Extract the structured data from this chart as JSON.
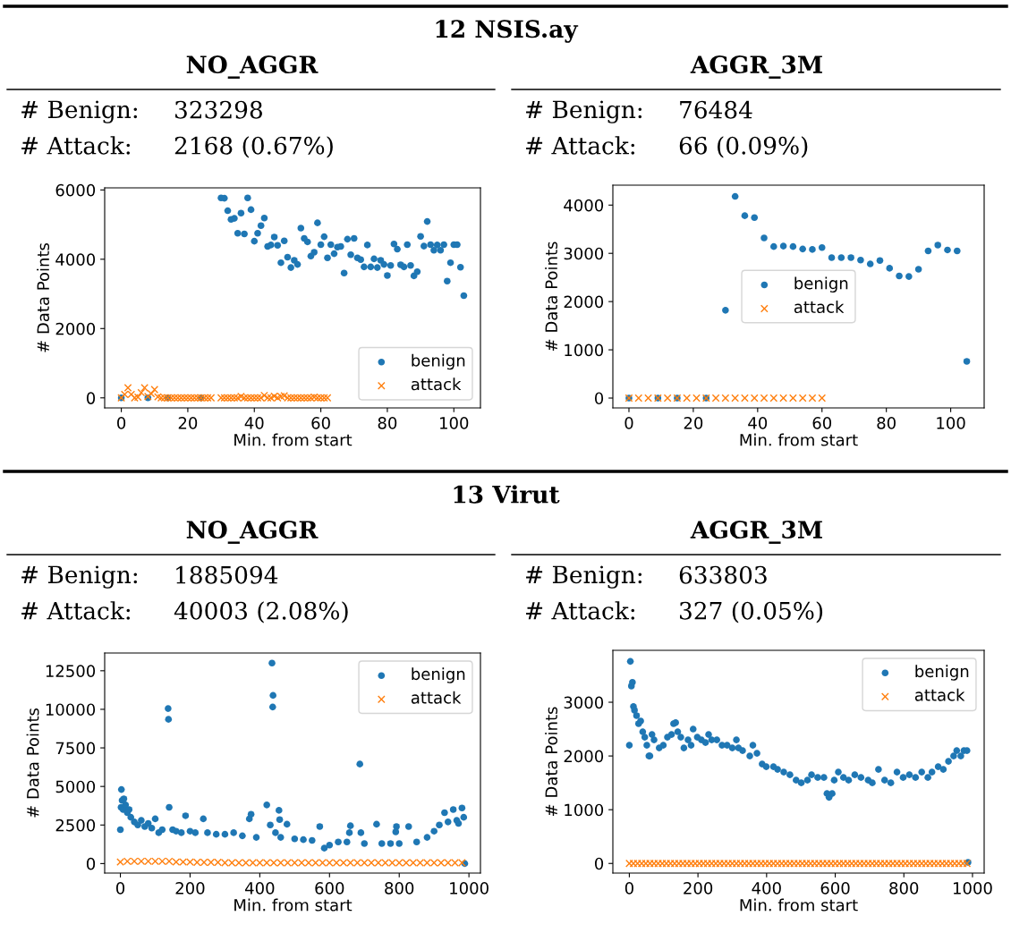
{
  "chart_data": [
    {
      "type": "other",
      "title": "12 NSIS.ay"
    },
    {
      "type": "scatter",
      "title": "NO_AGGR",
      "annotations": [
        "# Benign:",
        "323298",
        "# Attack:",
        "2168 (0.67%)"
      ],
      "xlabel": "Min. from start",
      "ylabel": "# Data Points",
      "xlim": [
        -5,
        108
      ],
      "ylim": [
        -290,
        6060
      ],
      "xticks": [
        0,
        20,
        40,
        60,
        80,
        100
      ],
      "yticks": [
        0,
        2000,
        4000,
        6000
      ],
      "legend": "bottom right",
      "grid": false,
      "series": [
        {
          "name": "benign",
          "color": "#1f77b4",
          "marker": "circle",
          "x": [
            0,
            8,
            14,
            24,
            30,
            31,
            32,
            33,
            34,
            35,
            36,
            37,
            38,
            39,
            40,
            41,
            42,
            43,
            44,
            45,
            46,
            47,
            48,
            49,
            50,
            51,
            52,
            53,
            54,
            55,
            56,
            57,
            58,
            59,
            60,
            61,
            62,
            63,
            64,
            65,
            66,
            67,
            68,
            69,
            70,
            71,
            72,
            73,
            74,
            75,
            76,
            77,
            78,
            79,
            80,
            81,
            82,
            83,
            84,
            85,
            86,
            87,
            88,
            89,
            90,
            91,
            92,
            93,
            94,
            95,
            96,
            97,
            98,
            99,
            100,
            101,
            102,
            103
          ],
          "values": [
            0,
            0,
            0,
            0,
            5770,
            5760,
            5400,
            5150,
            5180,
            4750,
            5330,
            4730,
            5770,
            5430,
            4520,
            4750,
            4970,
            5190,
            4370,
            4410,
            4640,
            4400,
            3900,
            4530,
            4060,
            3760,
            3970,
            3850,
            4900,
            4600,
            4500,
            4090,
            4200,
            5050,
            4420,
            4650,
            4040,
            4420,
            4160,
            4350,
            4370,
            3600,
            4580,
            4130,
            4600,
            4040,
            3990,
            3780,
            4410,
            3780,
            4010,
            3760,
            3970,
            3850,
            3530,
            3820,
            4440,
            4290,
            3840,
            3780,
            4420,
            3820,
            3520,
            3640,
            4660,
            4380,
            5090,
            4420,
            4260,
            4410,
            4260,
            4420,
            3370,
            3900,
            4420,
            4420,
            3770,
            2950
          ]
        },
        {
          "name": "attack",
          "color": "#ff7f0e",
          "marker": "cross",
          "x": [
            0,
            1,
            2,
            3,
            4,
            5,
            6,
            7,
            8,
            9,
            10,
            11,
            12,
            13,
            14,
            15,
            16,
            17,
            18,
            19,
            20,
            21,
            22,
            23,
            24,
            25,
            26,
            27,
            30,
            31,
            32,
            33,
            34,
            35,
            36,
            37,
            38,
            39,
            40,
            41,
            42,
            43,
            44,
            45,
            46,
            47,
            48,
            49,
            50,
            51,
            52,
            53,
            54,
            55,
            56,
            57,
            58,
            59,
            60,
            61,
            62
          ],
          "values": [
            0,
            100,
            290,
            100,
            0,
            20,
            150,
            290,
            40,
            120,
            240,
            30,
            0,
            0,
            0,
            0,
            0,
            0,
            0,
            0,
            0,
            0,
            0,
            0,
            0,
            0,
            0,
            0,
            0,
            0,
            0,
            0,
            0,
            0,
            40,
            0,
            0,
            0,
            0,
            0,
            0,
            70,
            0,
            0,
            50,
            0,
            40,
            60,
            0,
            0,
            0,
            0,
            0,
            0,
            0,
            0,
            20,
            0,
            0,
            0,
            0
          ]
        }
      ]
    },
    {
      "type": "scatter",
      "title": "AGGR_3M",
      "annotations": [
        "# Benign:",
        "76484",
        "# Attack:",
        "66 (0.09%)"
      ],
      "xlabel": "Min. from start",
      "ylabel": "# Data Points",
      "xlim": [
        -5,
        110.4
      ],
      "ylim": [
        -204,
        4413
      ],
      "xticks": [
        0,
        20,
        40,
        60,
        80,
        100
      ],
      "yticks": [
        0,
        1000,
        2000,
        3000,
        4000
      ],
      "legend": "center",
      "grid": false,
      "series": [
        {
          "name": "benign",
          "color": "#1f77b4",
          "marker": "circle",
          "x": [
            0,
            9,
            15,
            24,
            30,
            33,
            36,
            39,
            42,
            45,
            48,
            51,
            54,
            57,
            60,
            63,
            66,
            69,
            72,
            75,
            78,
            81,
            84,
            87,
            90,
            93,
            96,
            99,
            102,
            105
          ],
          "values": [
            0,
            0,
            0,
            0,
            1820,
            4180,
            3780,
            3740,
            3320,
            3140,
            3150,
            3140,
            3090,
            3080,
            3120,
            2910,
            2910,
            2910,
            2860,
            2780,
            2850,
            2690,
            2530,
            2520,
            2670,
            3050,
            3170,
            3070,
            3050,
            760
          ]
        },
        {
          "name": "attack",
          "color": "#ff7f0e",
          "marker": "cross",
          "x": [
            0,
            3,
            6,
            9,
            12,
            15,
            18,
            21,
            24,
            27,
            30,
            33,
            36,
            39,
            42,
            45,
            48,
            51,
            54,
            57,
            60
          ],
          "values": [
            0,
            0,
            0,
            0,
            0,
            0,
            0,
            0,
            0,
            0,
            0,
            0,
            0,
            0,
            0,
            0,
            0,
            0,
            0,
            0,
            0
          ]
        }
      ]
    },
    {
      "type": "other",
      "title": "13 Virut"
    },
    {
      "type": "scatter",
      "title": "NO_AGGR",
      "annotations": [
        "# Benign:",
        "1885094",
        "# Attack:",
        "40003 (2.08%)"
      ],
      "xlabel": "Min. from start",
      "ylabel": "# Data Points",
      "xlim": [
        -45,
        1033
      ],
      "ylim": [
        -615,
        13650
      ],
      "xticks": [
        0,
        200,
        400,
        600,
        800,
        1000
      ],
      "yticks": [
        0,
        2500,
        5000,
        7500,
        10000,
        12500
      ],
      "legend": "top right",
      "grid": false,
      "series": [
        {
          "name": "benign",
          "color": "#1f77b4",
          "marker": "circle",
          "x": [
            0,
            2,
            3,
            5,
            8,
            10,
            15,
            20,
            25,
            30,
            40,
            50,
            60,
            70,
            80,
            90,
            100,
            110,
            120,
            137,
            138,
            140,
            150,
            160,
            175,
            187,
            200,
            215,
            238,
            250,
            275,
            300,
            325,
            350,
            370,
            375,
            390,
            420,
            430,
            435,
            437,
            438,
            445,
            455,
            457,
            460,
            478,
            500,
            525,
            550,
            572,
            585,
            600,
            625,
            650,
            657,
            660,
            687,
            690,
            700,
            735,
            750,
            775,
            790,
            792,
            800,
            827,
            850,
            880,
            900,
            915,
            930,
            940,
            955,
            965,
            970,
            980,
            985,
            988
          ],
          "values": [
            2200,
            3650,
            4800,
            4100,
            3500,
            4200,
            3800,
            3300,
            3500,
            3000,
            2700,
            2500,
            2800,
            2400,
            2600,
            2300,
            2900,
            2000,
            2200,
            10050,
            9350,
            3650,
            2200,
            2100,
            2000,
            3100,
            2100,
            2000,
            2900,
            2000,
            1900,
            1900,
            2000,
            1800,
            2900,
            3200,
            1700,
            3800,
            2500,
            13000,
            10150,
            10900,
            2000,
            3450,
            2850,
            1700,
            2550,
            1600,
            1550,
            1500,
            2400,
            1000,
            1200,
            1400,
            1400,
            2000,
            2450,
            6450,
            2000,
            1300,
            2550,
            1300,
            1300,
            2050,
            2400,
            1300,
            2400,
            1400,
            1700,
            2100,
            2500,
            3300,
            2700,
            3500,
            2800,
            2600,
            3600,
            3000,
            0
          ]
        },
        {
          "name": "attack",
          "color": "#ff7f0e",
          "marker": "cross",
          "x": [
            0,
            20,
            40,
            60,
            80,
            100,
            120,
            140,
            160,
            180,
            200,
            220,
            240,
            260,
            280,
            300,
            320,
            340,
            360,
            380,
            400,
            420,
            440,
            460,
            480,
            500,
            520,
            540,
            560,
            580,
            600,
            620,
            640,
            660,
            680,
            700,
            720,
            740,
            760,
            780,
            800,
            820,
            840,
            860,
            880,
            900,
            920,
            940,
            960,
            980
          ],
          "values": [
            100,
            150,
            150,
            150,
            150,
            150,
            150,
            150,
            100,
            100,
            100,
            80,
            80,
            80,
            80,
            50,
            50,
            50,
            50,
            50,
            50,
            50,
            50,
            50,
            50,
            50,
            50,
            50,
            50,
            50,
            50,
            50,
            50,
            50,
            50,
            50,
            50,
            50,
            50,
            50,
            50,
            50,
            50,
            50,
            50,
            50,
            50,
            50,
            50,
            50
          ]
        }
      ]
    },
    {
      "type": "scatter",
      "title": "AGGR_3M",
      "annotations": [
        "# Benign:",
        "633803",
        "# Attack:",
        "327 (0.05%)"
      ],
      "xlabel": "Min. from start",
      "ylabel": "# Data Points",
      "xlim": [
        -48,
        1034
      ],
      "ylim": [
        -179,
        3966
      ],
      "xticks": [
        0,
        200,
        400,
        600,
        800,
        1000
      ],
      "yticks": [
        0,
        1000,
        2000,
        3000
      ],
      "legend": "top right",
      "grid": false,
      "series": [
        {
          "name": "benign",
          "color": "#1f77b4",
          "marker": "circle",
          "x": [
            0,
            3,
            6,
            9,
            12,
            15,
            21,
            27,
            33,
            39,
            45,
            51,
            57,
            60,
            66,
            72,
            87,
            99,
            111,
            123,
            129,
            135,
            141,
            150,
            159,
            171,
            180,
            186,
            198,
            210,
            222,
            231,
            240,
            255,
            270,
            285,
            300,
            312,
            318,
            330,
            351,
            360,
            372,
            387,
            399,
            420,
            432,
            450,
            468,
            486,
            501,
            519,
            531,
            549,
            567,
            576,
            582,
            591,
            597,
            609,
            624,
            639,
            657,
            675,
            696,
            708,
            726,
            744,
            762,
            780,
            798,
            816,
            834,
            852,
            870,
            882,
            900,
            915,
            930,
            945,
            954,
            966,
            975,
            984,
            987
          ],
          "values": [
            2200,
            3760,
            3300,
            3370,
            2920,
            2850,
            2750,
            2600,
            2650,
            2450,
            2350,
            2200,
            2000,
            2000,
            2400,
            2300,
            2150,
            2200,
            2350,
            2400,
            2600,
            2620,
            2450,
            2350,
            2150,
            2300,
            2200,
            2500,
            2350,
            2300,
            2250,
            2400,
            2300,
            2300,
            2200,
            2200,
            2150,
            2300,
            2150,
            2100,
            2000,
            2200,
            2050,
            1850,
            1800,
            1800,
            1750,
            1700,
            1650,
            1550,
            1500,
            1550,
            1650,
            1600,
            1600,
            1300,
            1230,
            1300,
            1550,
            1700,
            1600,
            1550,
            1650,
            1600,
            1550,
            1500,
            1750,
            1550,
            1500,
            1700,
            1600,
            1650,
            1600,
            1700,
            1600,
            1700,
            1800,
            1750,
            1900,
            2000,
            2100,
            2000,
            2100,
            2100,
            20
          ]
        },
        {
          "name": "attack",
          "color": "#ff7f0e",
          "marker": "cross",
          "x": [
            0,
            12,
            24,
            36,
            48,
            60,
            72,
            84,
            96,
            108,
            120,
            132,
            144,
            156,
            168,
            180,
            192,
            204,
            216,
            228,
            240,
            252,
            264,
            276,
            288,
            300,
            312,
            324,
            336,
            348,
            360,
            372,
            384,
            396,
            408,
            420,
            432,
            444,
            456,
            468,
            480,
            492,
            504,
            516,
            528,
            540,
            552,
            564,
            576,
            588,
            600,
            612,
            624,
            636,
            648,
            660,
            672,
            684,
            696,
            708,
            720,
            732,
            744,
            756,
            768,
            780,
            792,
            804,
            816,
            828,
            840,
            852,
            864,
            876,
            888,
            900,
            912,
            924,
            936,
            948,
            960,
            972,
            984
          ],
          "values": [
            0,
            0,
            0,
            0,
            0,
            0,
            0,
            0,
            0,
            0,
            0,
            0,
            0,
            0,
            0,
            0,
            0,
            0,
            0,
            0,
            0,
            0,
            0,
            0,
            0,
            0,
            0,
            0,
            0,
            0,
            0,
            0,
            0,
            0,
            0,
            0,
            0,
            0,
            0,
            0,
            0,
            0,
            0,
            0,
            0,
            0,
            0,
            0,
            0,
            0,
            0,
            0,
            0,
            0,
            0,
            0,
            0,
            0,
            0,
            0,
            0,
            0,
            0,
            0,
            0,
            0,
            0,
            0,
            0,
            0,
            0,
            0,
            0,
            0,
            0,
            0,
            0,
            0,
            0,
            0,
            0,
            0,
            0
          ]
        }
      ]
    }
  ]
}
